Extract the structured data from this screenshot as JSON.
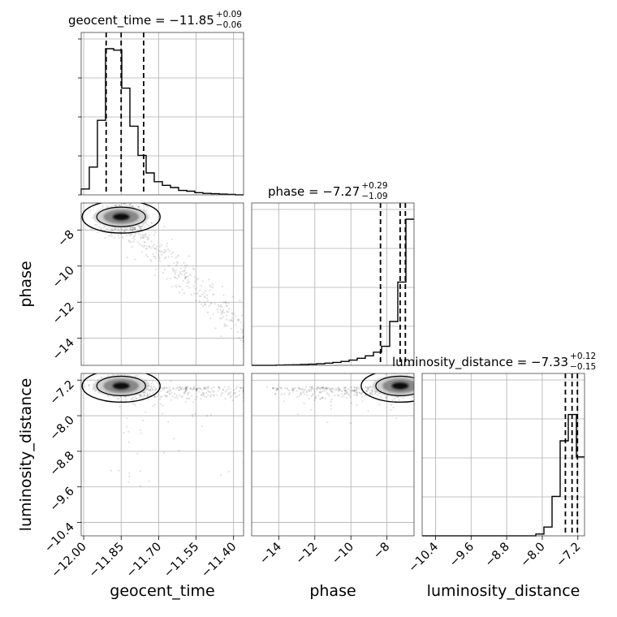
{
  "chart_data": {
    "type": "corner",
    "parameters": [
      "geocent_time",
      "phase",
      "luminosity_distance"
    ],
    "titles": [
      {
        "param": "geocent_time",
        "prefix": "geocent_time = ",
        "median": "−11.85",
        "plus": "+0.09",
        "minus": "−0.06"
      },
      {
        "param": "phase",
        "prefix": "phase = ",
        "median": "−7.27",
        "plus": "+0.29",
        "minus": "−1.09"
      },
      {
        "param": "luminosity_distance",
        "prefix": "luminosity_distance = ",
        "median": "−7.33",
        "plus": "+0.12",
        "minus": "−0.15"
      }
    ],
    "ranges": {
      "geocent_time": [
        -12.01,
        -11.36
      ],
      "phase": [
        -15.5,
        -6.5
      ],
      "luminosity_distance": [
        -10.7,
        -7.05
      ]
    },
    "ticks": {
      "geocent_time": {
        "values": [
          -12.0,
          -11.85,
          -11.7,
          -11.55,
          -11.4
        ],
        "labels": [
          "−12.00",
          "−11.85",
          "−11.70",
          "−11.55",
          "−11.40"
        ]
      },
      "phase": {
        "values": [
          -14,
          -12,
          -10,
          -8
        ],
        "labels": [
          "−14",
          "−12",
          "−10",
          "−8"
        ]
      },
      "luminosity_distance": {
        "values": [
          -10.4,
          -9.6,
          -8.8,
          -8.0,
          -7.2
        ],
        "labels": [
          "−10.4",
          "−9.6",
          "−8.8",
          "−8.0",
          "−7.2"
        ]
      }
    },
    "quantiles": {
      "geocent_time": [
        -11.91,
        -11.85,
        -11.76
      ],
      "phase": [
        -8.36,
        -7.27,
        -6.98
      ],
      "luminosity_distance": [
        -7.48,
        -7.33,
        -7.21
      ]
    },
    "histograms": {
      "geocent_time": {
        "edges": [
          -12.01,
          -11.9775,
          -11.945,
          -11.9125,
          -11.88,
          -11.8475,
          -11.815,
          -11.7825,
          -11.75,
          -11.7175,
          -11.685,
          -11.6525,
          -11.62,
          -11.5875,
          -11.555,
          -11.5225,
          -11.49,
          -11.4575,
          -11.425,
          -11.3925,
          -11.36
        ],
        "values": [
          0.04,
          0.19,
          0.51,
          1.0,
          0.99,
          0.73,
          0.47,
          0.27,
          0.15,
          0.09,
          0.065,
          0.05,
          0.03,
          0.025,
          0.015,
          0.01,
          0.008,
          0.005,
          0.003,
          0.0
        ]
      },
      "phase": {
        "edges": [
          -15.5,
          -15.05,
          -14.6,
          -14.15,
          -13.7,
          -13.25,
          -12.8,
          -12.35,
          -11.9,
          -11.45,
          -11.0,
          -10.55,
          -10.1,
          -9.65,
          -9.2,
          -8.75,
          -8.3,
          -7.85,
          -7.4,
          -6.95,
          -6.5
        ],
        "values": [
          0.0,
          0.0,
          0.0,
          0.002,
          0.003,
          0.004,
          0.006,
          0.008,
          0.011,
          0.015,
          0.02,
          0.027,
          0.036,
          0.048,
          0.065,
          0.09,
          0.13,
          0.3,
          0.57,
          1.0
        ]
      },
      "luminosity_distance": {
        "edges": [
          -10.7,
          -10.5175,
          -10.335,
          -10.1525,
          -9.97,
          -9.7875,
          -9.605,
          -9.4225,
          -9.24,
          -9.0575,
          -8.875,
          -8.6925,
          -8.51,
          -8.3275,
          -8.145,
          -7.9625,
          -7.78,
          -7.5975,
          -7.415,
          -7.2325,
          -7.05
        ],
        "values": [
          0,
          0,
          0,
          0,
          0,
          0,
          0,
          0,
          0,
          0,
          0,
          0,
          0,
          0,
          0.012,
          0.06,
          0.27,
          0.65,
          0.83,
          0.54
        ]
      }
    },
    "grid": true,
    "axis_labels": {
      "x": [
        "geocent_time",
        "phase",
        "luminosity_distance"
      ],
      "y": [
        "phase",
        "luminosity_distance"
      ]
    }
  }
}
